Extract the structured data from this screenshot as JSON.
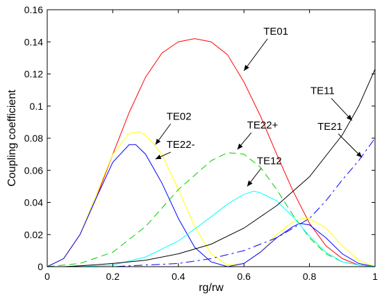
{
  "chart_data": {
    "type": "line",
    "title": "",
    "xlabel": "rg/rw",
    "ylabel": "Coupling coefficient",
    "xlim": [
      0,
      1
    ],
    "ylim": [
      0,
      0.16
    ],
    "xticks": [
      "0",
      "0.2",
      "0.4",
      "0.6",
      "0.8",
      "1"
    ],
    "yticks": [
      "0",
      "0.02",
      "0.04",
      "0.06",
      "0.08",
      "0.1",
      "0.12",
      "0.14",
      "0.16"
    ],
    "grid": false,
    "legend": "none",
    "series": [
      {
        "name": "TE01",
        "color": "#ff0000",
        "dash": "solid",
        "points": [
          [
            0,
            0
          ],
          [
            0.05,
            0.005
          ],
          [
            0.1,
            0.02
          ],
          [
            0.15,
            0.043
          ],
          [
            0.2,
            0.07
          ],
          [
            0.25,
            0.096
          ],
          [
            0.3,
            0.118
          ],
          [
            0.35,
            0.133
          ],
          [
            0.4,
            0.14
          ],
          [
            0.45,
            0.142
          ],
          [
            0.5,
            0.14
          ],
          [
            0.55,
            0.132
          ],
          [
            0.6,
            0.115
          ],
          [
            0.65,
            0.094
          ],
          [
            0.7,
            0.07
          ],
          [
            0.75,
            0.047
          ],
          [
            0.8,
            0.027
          ],
          [
            0.85,
            0.013
          ],
          [
            0.9,
            0.005
          ],
          [
            0.95,
            0.001
          ],
          [
            1,
            0
          ]
        ]
      },
      {
        "name": "TE02",
        "color": "#ffff00",
        "dash": "solid",
        "points": [
          [
            0,
            0
          ],
          [
            0.05,
            0.005
          ],
          [
            0.1,
            0.02
          ],
          [
            0.15,
            0.045
          ],
          [
            0.2,
            0.07
          ],
          [
            0.25,
            0.083
          ],
          [
            0.28,
            0.084
          ],
          [
            0.3,
            0.082
          ],
          [
            0.35,
            0.07
          ],
          [
            0.4,
            0.048
          ],
          [
            0.45,
            0.025
          ],
          [
            0.5,
            0.008
          ],
          [
            0.55,
            0.001
          ],
          [
            0.6,
            0.002
          ],
          [
            0.65,
            0.009
          ],
          [
            0.7,
            0.02
          ],
          [
            0.75,
            0.028
          ],
          [
            0.78,
            0.03
          ],
          [
            0.8,
            0.03
          ],
          [
            0.85,
            0.024
          ],
          [
            0.9,
            0.013
          ],
          [
            0.95,
            0.004
          ],
          [
            1,
            0
          ]
        ]
      },
      {
        "name": "TE22-",
        "color": "#0000ff",
        "dash": "solid",
        "points": [
          [
            0,
            0
          ],
          [
            0.05,
            0.005
          ],
          [
            0.1,
            0.02
          ],
          [
            0.15,
            0.043
          ],
          [
            0.2,
            0.065
          ],
          [
            0.25,
            0.076
          ],
          [
            0.27,
            0.076
          ],
          [
            0.3,
            0.07
          ],
          [
            0.35,
            0.052
          ],
          [
            0.4,
            0.03
          ],
          [
            0.45,
            0.012
          ],
          [
            0.5,
            0.003
          ],
          [
            0.55,
            0
          ],
          [
            0.6,
            0.002
          ],
          [
            0.65,
            0.009
          ],
          [
            0.7,
            0.018
          ],
          [
            0.75,
            0.025
          ],
          [
            0.77,
            0.027
          ],
          [
            0.8,
            0.026
          ],
          [
            0.85,
            0.018
          ],
          [
            0.9,
            0.008
          ],
          [
            0.95,
            0.002
          ],
          [
            1,
            0
          ]
        ]
      },
      {
        "name": "TE22+",
        "color": "#00cc00",
        "dash": "dashed",
        "points": [
          [
            0,
            0
          ],
          [
            0.1,
            0.002
          ],
          [
            0.2,
            0.009
          ],
          [
            0.3,
            0.025
          ],
          [
            0.4,
            0.048
          ],
          [
            0.5,
            0.066
          ],
          [
            0.55,
            0.071
          ],
          [
            0.6,
            0.07
          ],
          [
            0.65,
            0.062
          ],
          [
            0.7,
            0.048
          ],
          [
            0.75,
            0.032
          ],
          [
            0.8,
            0.018
          ],
          [
            0.85,
            0.008
          ],
          [
            0.9,
            0.003
          ],
          [
            0.95,
            0.001
          ],
          [
            1,
            0
          ]
        ]
      },
      {
        "name": "TE12",
        "color": "#00ffff",
        "dash": "solid",
        "points": [
          [
            0,
            0
          ],
          [
            0.1,
            0
          ],
          [
            0.2,
            0.001
          ],
          [
            0.3,
            0.006
          ],
          [
            0.4,
            0.016
          ],
          [
            0.5,
            0.031
          ],
          [
            0.55,
            0.039
          ],
          [
            0.6,
            0.045
          ],
          [
            0.63,
            0.047
          ],
          [
            0.65,
            0.046
          ],
          [
            0.7,
            0.041
          ],
          [
            0.75,
            0.031
          ],
          [
            0.8,
            0.019
          ],
          [
            0.85,
            0.009
          ],
          [
            0.9,
            0.003
          ],
          [
            0.95,
            0.001
          ],
          [
            1,
            0
          ]
        ]
      },
      {
        "name": "TE11",
        "color": "#000000",
        "dash": "solid",
        "points": [
          [
            0,
            0
          ],
          [
            0.05,
            0
          ],
          [
            0.1,
            0.0005
          ],
          [
            0.2,
            0.002
          ],
          [
            0.3,
            0.004
          ],
          [
            0.4,
            0.008
          ],
          [
            0.5,
            0.014
          ],
          [
            0.6,
            0.024
          ],
          [
            0.7,
            0.038
          ],
          [
            0.8,
            0.056
          ],
          [
            0.9,
            0.082
          ],
          [
            0.95,
            0.1
          ],
          [
            1,
            0.123
          ]
        ]
      },
      {
        "name": "TE21",
        "color": "#0000ff",
        "dash": "dashdot",
        "points": [
          [
            0,
            0
          ],
          [
            0.2,
            0
          ],
          [
            0.3,
            0.001
          ],
          [
            0.4,
            0.002
          ],
          [
            0.5,
            0.005
          ],
          [
            0.6,
            0.01
          ],
          [
            0.7,
            0.018
          ],
          [
            0.8,
            0.03
          ],
          [
            0.85,
            0.041
          ],
          [
            0.9,
            0.054
          ],
          [
            0.95,
            0.066
          ],
          [
            1,
            0.08
          ]
        ]
      }
    ],
    "annotations": [
      {
        "text": "TE01",
        "series": "TE01",
        "x": 0.6,
        "y": 0.122
      },
      {
        "text": "TE02",
        "series": "TE02",
        "x": 0.33,
        "y": 0.076
      },
      {
        "text": "TE22-",
        "series": "TE22-",
        "x": 0.33,
        "y": 0.067
      },
      {
        "text": "TE22+",
        "series": "TE22+",
        "x": 0.58,
        "y": 0.073
      },
      {
        "text": "TE12",
        "series": "TE12",
        "x": 0.61,
        "y": 0.05
      },
      {
        "text": "TE11",
        "series": "TE11",
        "x": 0.93,
        "y": 0.091
      },
      {
        "text": "TE21",
        "series": "TE21",
        "x": 0.96,
        "y": 0.068
      }
    ]
  }
}
